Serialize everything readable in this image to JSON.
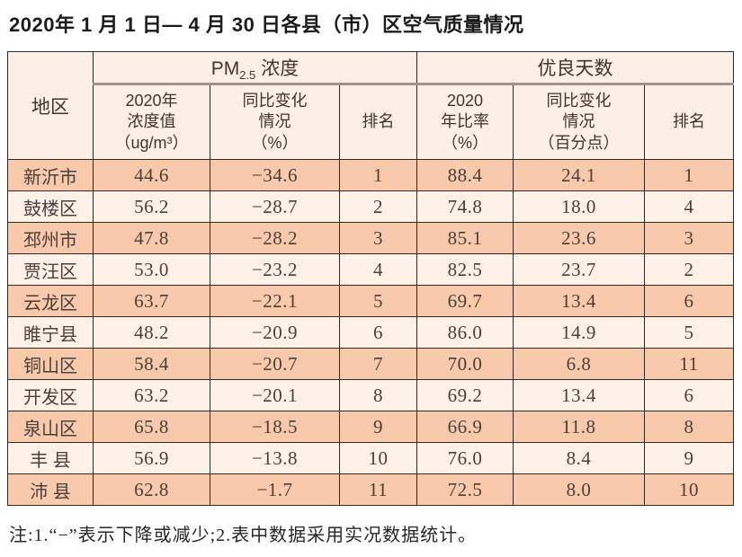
{
  "title": "2020年 1 月 1 日— 4 月 30 日各县（市）区空气质量情况",
  "table": {
    "region_header": "地区",
    "pm_group": {
      "prefix": "PM",
      "sub": "2.5",
      "suffix": "浓度"
    },
    "good_days_group": "优良天数",
    "sub_headers": {
      "pm_value": "2020年\n浓度值\n（ug/m³）",
      "pm_change": "同比变化\n情况\n（%）",
      "pm_rank": "排名",
      "good_ratio": "2020\n年比率\n（%）",
      "good_change": "同比变化\n情况\n（百分点）",
      "good_rank": "排名"
    },
    "rows": [
      {
        "region": "新沂市",
        "pm_value": "44.6",
        "pm_change": "−34.6",
        "pm_rank": "1",
        "good_ratio": "88.4",
        "good_change": "24.1",
        "good_rank": "1"
      },
      {
        "region": "鼓楼区",
        "pm_value": "56.2",
        "pm_change": "−28.7",
        "pm_rank": "2",
        "good_ratio": "74.8",
        "good_change": "18.0",
        "good_rank": "4"
      },
      {
        "region": "邳州市",
        "pm_value": "47.8",
        "pm_change": "−28.2",
        "pm_rank": "3",
        "good_ratio": "85.1",
        "good_change": "23.6",
        "good_rank": "3"
      },
      {
        "region": "贾汪区",
        "pm_value": "53.0",
        "pm_change": "−23.2",
        "pm_rank": "4",
        "good_ratio": "82.5",
        "good_change": "23.7",
        "good_rank": "2"
      },
      {
        "region": "云龙区",
        "pm_value": "63.7",
        "pm_change": "−22.1",
        "pm_rank": "5",
        "good_ratio": "69.7",
        "good_change": "13.4",
        "good_rank": "6"
      },
      {
        "region": "睢宁县",
        "pm_value": "48.2",
        "pm_change": "−20.9",
        "pm_rank": "6",
        "good_ratio": "86.0",
        "good_change": "14.9",
        "good_rank": "5"
      },
      {
        "region": "铜山区",
        "pm_value": "58.4",
        "pm_change": "−20.7",
        "pm_rank": "7",
        "good_ratio": "70.0",
        "good_change": "6.8",
        "good_rank": "11"
      },
      {
        "region": "开发区",
        "pm_value": "63.2",
        "pm_change": "−20.1",
        "pm_rank": "8",
        "good_ratio": "69.2",
        "good_change": "13.4",
        "good_rank": "6"
      },
      {
        "region": "泉山区",
        "pm_value": "65.8",
        "pm_change": "−18.5",
        "pm_rank": "9",
        "good_ratio": "66.9",
        "good_change": "11.8",
        "good_rank": "8"
      },
      {
        "region": "丰 县",
        "pm_value": "56.9",
        "pm_change": "−13.8",
        "pm_rank": "10",
        "good_ratio": "76.0",
        "good_change": "8.4",
        "good_rank": "9"
      },
      {
        "region": "沛 县",
        "pm_value": "62.8",
        "pm_change": "−1.7",
        "pm_rank": "11",
        "good_ratio": "72.5",
        "good_change": "8.0",
        "good_rank": "10"
      }
    ]
  },
  "note": "注:1.“−”表示下降或减少;2.表中数据采用实况数据统计。",
  "colors": {
    "row_odd": "#f9c9ac",
    "row_even": "#fdf1e8",
    "header_bg": "#fcefe6",
    "border": "#362620",
    "group_divider": "#9d948d"
  }
}
